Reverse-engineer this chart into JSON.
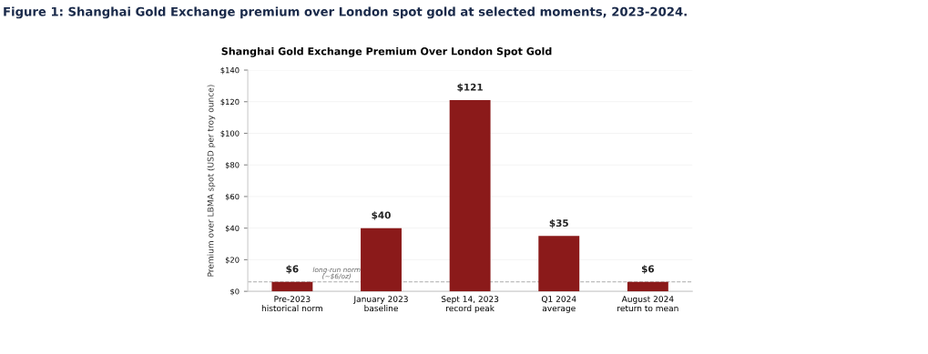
{
  "chart_data": {
    "type": "bar",
    "title": "Figure 1: Shanghai Gold Exchange premium over London spot gold at selected moments, 2023-2024.",
    "subtitle": "Shanghai Gold Exchange Premium Over London Spot Gold",
    "ylabel": "Premium over LBMA spot (USD per troy ounce)",
    "categories": [
      "Pre-2023\nhistorical norm",
      "January 2023\nbaseline",
      "Sept 14, 2023\nrecord peak",
      "Q1 2024\naverage",
      "August 2024\nreturn to mean"
    ],
    "values": [
      6,
      40,
      121,
      35,
      6
    ],
    "value_labels": [
      "$6",
      "$40",
      "$121",
      "$35",
      "$6"
    ],
    "color": "#8b1a1a",
    "ylim": [
      0,
      140
    ],
    "yticks": [
      {
        "value": 0,
        "label": "$0"
      },
      {
        "value": 20,
        "label": "$20"
      },
      {
        "value": 40,
        "label": "$40"
      },
      {
        "value": 60,
        "label": "$60"
      },
      {
        "value": 80,
        "label": "$80"
      },
      {
        "value": 100,
        "label": "$100"
      },
      {
        "value": 120,
        "label": "$120"
      },
      {
        "value": 140,
        "label": "$140"
      }
    ],
    "ref_lines": [
      {
        "axis": "y",
        "value": 6,
        "label": "long-run norm (~$6/oz)",
        "color": "#aaaaaa",
        "line_style": "dashed"
      }
    ],
    "grid": "y",
    "legend": false
  }
}
